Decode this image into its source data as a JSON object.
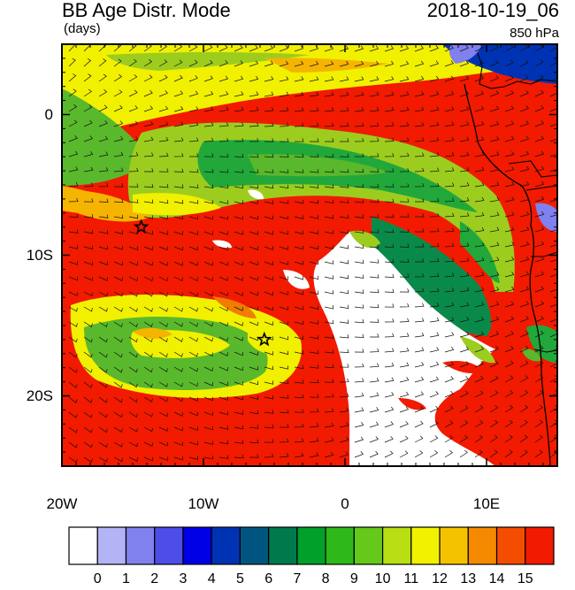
{
  "header": {
    "title": "BB Age Distr. Mode",
    "units": "(days)",
    "datetime": "2018-10-19_06",
    "level": "850 hPa"
  },
  "map": {
    "lon_range": [
      -20,
      15
    ],
    "lat_range": [
      -25,
      5
    ],
    "x_ticks": [
      {
        "value": -20,
        "label": "20W"
      },
      {
        "value": -10,
        "label": "10W"
      },
      {
        "value": 0,
        "label": "0"
      },
      {
        "value": 10,
        "label": "10E"
      }
    ],
    "y_ticks": [
      {
        "value": 0,
        "label": "0"
      },
      {
        "value": -10,
        "label": "10S"
      },
      {
        "value": -20,
        "label": "20S"
      }
    ],
    "star_markers": [
      {
        "lon": -14.4,
        "lat": -8.0,
        "name": "star-marker-ascension"
      },
      {
        "lon": -5.7,
        "lat": -16.0,
        "name": "star-marker-st-helena"
      }
    ]
  },
  "colorbar": {
    "labels": [
      "0",
      "1",
      "2",
      "3",
      "4",
      "5",
      "6",
      "7",
      "8",
      "9",
      "10",
      "11",
      "12",
      "13",
      "14",
      "15"
    ],
    "colors": [
      "#ffffff",
      "#b3b3f5",
      "#8080ee",
      "#4d4de8",
      "#0000e6",
      "#0033b3",
      "#005580",
      "#007a4d",
      "#00a02a",
      "#2eb81a",
      "#66c81a",
      "#b8de14",
      "#f2f200",
      "#f5c200",
      "#f58a00",
      "#f54d00",
      "#f21a00"
    ]
  },
  "colors": {
    "white": "#ffffff",
    "green_dark": "#0a8a4a",
    "green_med": "#22a83a",
    "green_light": "#5ab82c",
    "yellow_green": "#9ccd1e",
    "yellow": "#f0f000",
    "orange_yellow": "#f5b400",
    "orange": "#f07d00",
    "red": "#f21a00",
    "blue_dark": "#0033b3",
    "blue_light": "#8080ee"
  }
}
